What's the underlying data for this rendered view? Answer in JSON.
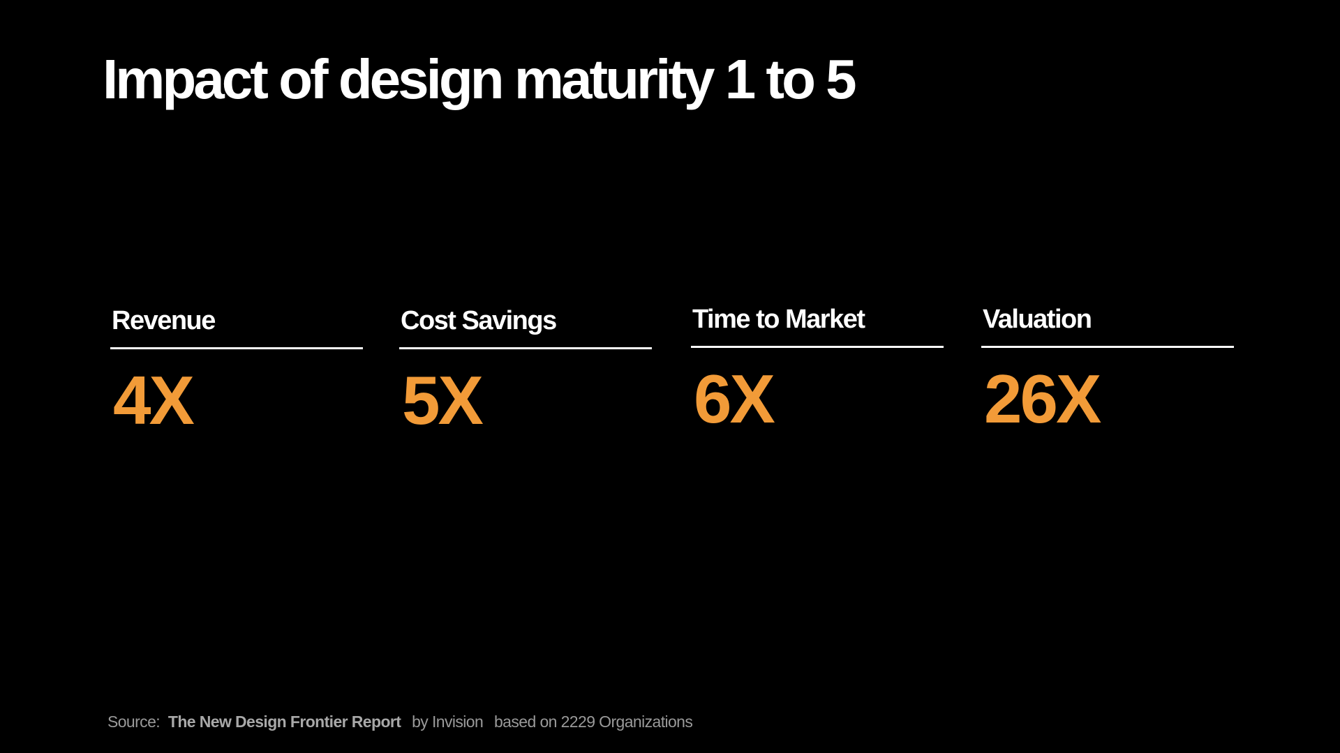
{
  "slide": {
    "title": "Impact of design maturity 1 to 5",
    "accent_color": "#f29b38",
    "metrics": [
      {
        "label": "Revenue",
        "value": "4X"
      },
      {
        "label": "Cost Savings",
        "value": "5X"
      },
      {
        "label": "Time to Market",
        "value": "6X"
      },
      {
        "label": "Valuation",
        "value": "26X"
      }
    ],
    "footer": {
      "source_prefix": "Source:",
      "report_name": "The New Design Frontier Report",
      "publisher": "by Invision",
      "basis": "based on 2229 Organizations"
    }
  }
}
